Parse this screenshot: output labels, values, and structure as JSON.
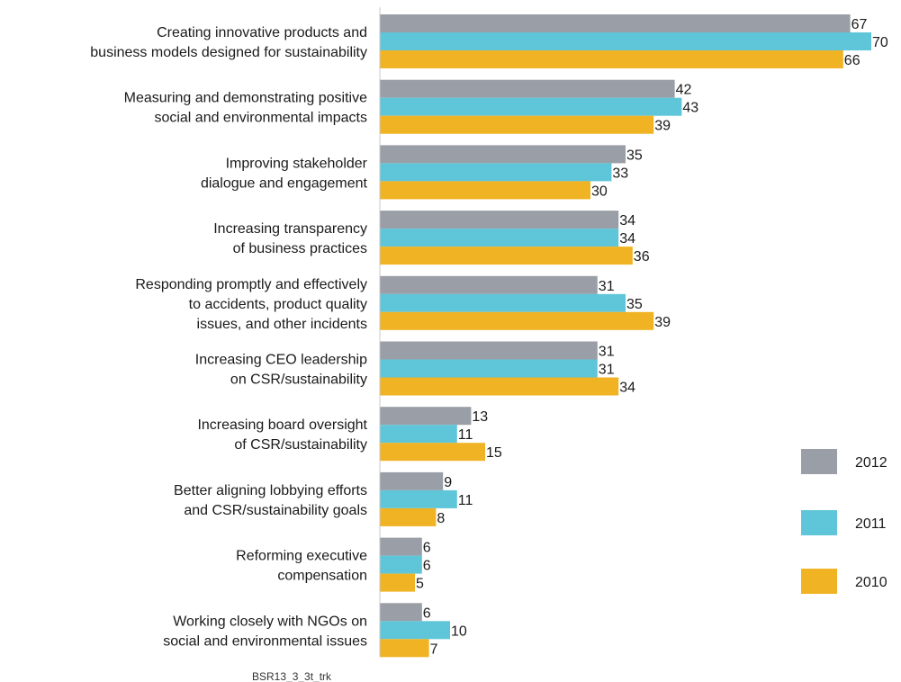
{
  "chart_data": {
    "type": "bar",
    "orientation": "horizontal",
    "categories": [
      [
        "Creating innovative products and",
        "business models designed for sustainability"
      ],
      [
        "Measuring and demonstrating positive",
        "social and environmental impacts"
      ],
      [
        "Improving stakeholder",
        "dialogue and engagement"
      ],
      [
        "Increasing transparency",
        "of business practices"
      ],
      [
        "Responding promptly and effectively",
        "to accidents, product quality",
        "issues, and other incidents"
      ],
      [
        "Increasing CEO leadership",
        "on CSR/sustainability"
      ],
      [
        "Increasing board oversight",
        "of CSR/sustainability"
      ],
      [
        "Better aligning lobbying efforts",
        "and CSR/sustainability goals"
      ],
      [
        "Reforming executive",
        "compensation"
      ],
      [
        "Working closely with NGOs on",
        "social and environmental issues"
      ]
    ],
    "series": [
      {
        "name": "2012",
        "color": "#9a9ea6",
        "values": [
          67,
          42,
          35,
          34,
          31,
          31,
          13,
          9,
          6,
          6
        ]
      },
      {
        "name": "2011",
        "color": "#5fc5d9",
        "values": [
          70,
          43,
          33,
          34,
          35,
          31,
          11,
          11,
          6,
          10
        ]
      },
      {
        "name": "2010",
        "color": "#f0b323",
        "values": [
          66,
          39,
          30,
          36,
          39,
          34,
          15,
          8,
          5,
          7
        ]
      }
    ],
    "xlim": [
      0,
      70
    ],
    "legend_position": "right",
    "footnote": "BSR13_3_3t_trk"
  }
}
